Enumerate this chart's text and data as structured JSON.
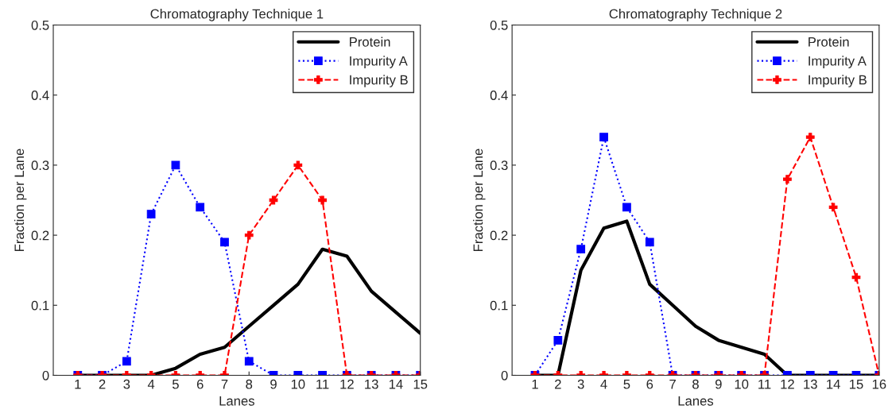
{
  "chart_data": [
    {
      "type": "line",
      "title": "Chromatography Technique 1",
      "xlabel": "Lanes",
      "ylabel": "Fraction per Lane",
      "x": [
        1,
        2,
        3,
        4,
        5,
        6,
        7,
        8,
        9,
        10,
        11,
        12,
        13,
        14,
        15
      ],
      "xlim": [
        0,
        15
      ],
      "xticks": [
        1,
        2,
        3,
        4,
        5,
        6,
        7,
        8,
        9,
        10,
        11,
        12,
        13,
        14,
        15
      ],
      "ylim": [
        0,
        0.5
      ],
      "yticks": [
        0,
        0.1,
        0.2,
        0.3,
        0.4,
        0.5
      ],
      "grid": false,
      "legend": "top right",
      "series": [
        {
          "name": "Protein",
          "color": "#000000",
          "marker": "none",
          "line_style": "solid",
          "values": [
            0,
            0,
            0,
            0,
            0.01,
            0.03,
            0.04,
            0.07,
            0.1,
            0.13,
            0.18,
            0.17,
            0.12,
            0.09,
            0.06
          ]
        },
        {
          "name": "Impurity A",
          "color": "#0000ff",
          "marker": "square",
          "line_style": "dotted",
          "values": [
            0,
            0,
            0.02,
            0.23,
            0.3,
            0.24,
            0.19,
            0.02,
            0,
            0,
            0,
            0,
            0,
            0,
            0
          ]
        },
        {
          "name": "Impurity B",
          "color": "#ff0000",
          "marker": "cross",
          "line_style": "dashed",
          "values": [
            0,
            0,
            0,
            0,
            0,
            0,
            0,
            0.2,
            0.25,
            0.3,
            0.25,
            0,
            0,
            0,
            0
          ]
        }
      ]
    },
    {
      "type": "line",
      "title": "Chromatography Technique 2",
      "xlabel": "Lanes",
      "ylabel": "Fraction per Lane",
      "x": [
        1,
        2,
        3,
        4,
        5,
        6,
        7,
        8,
        9,
        10,
        11,
        12,
        13,
        14,
        15,
        16
      ],
      "xlim": [
        0,
        16
      ],
      "xticks": [
        1,
        2,
        3,
        4,
        5,
        6,
        7,
        8,
        9,
        10,
        11,
        12,
        13,
        14,
        15,
        16
      ],
      "ylim": [
        0,
        0.5
      ],
      "yticks": [
        0,
        0.1,
        0.2,
        0.3,
        0.4,
        0.5
      ],
      "grid": false,
      "legend": "top right",
      "series": [
        {
          "name": "Protein",
          "color": "#000000",
          "marker": "none",
          "line_style": "solid",
          "values": [
            0,
            0,
            0.15,
            0.21,
            0.22,
            0.13,
            0.1,
            0.07,
            0.05,
            0.04,
            0.03,
            0,
            0,
            0,
            0,
            0
          ]
        },
        {
          "name": "Impurity A",
          "color": "#0000ff",
          "marker": "square",
          "line_style": "dotted",
          "values": [
            0,
            0.05,
            0.18,
            0.34,
            0.24,
            0.19,
            0,
            0,
            0,
            0,
            0,
            0,
            0,
            0,
            0,
            0
          ]
        },
        {
          "name": "Impurity B",
          "color": "#ff0000",
          "marker": "cross",
          "line_style": "dashed",
          "values": [
            0,
            0,
            0,
            0,
            0,
            0,
            0,
            0,
            0,
            0,
            0,
            0.28,
            0.34,
            0.24,
            0.14,
            0
          ]
        }
      ]
    }
  ]
}
